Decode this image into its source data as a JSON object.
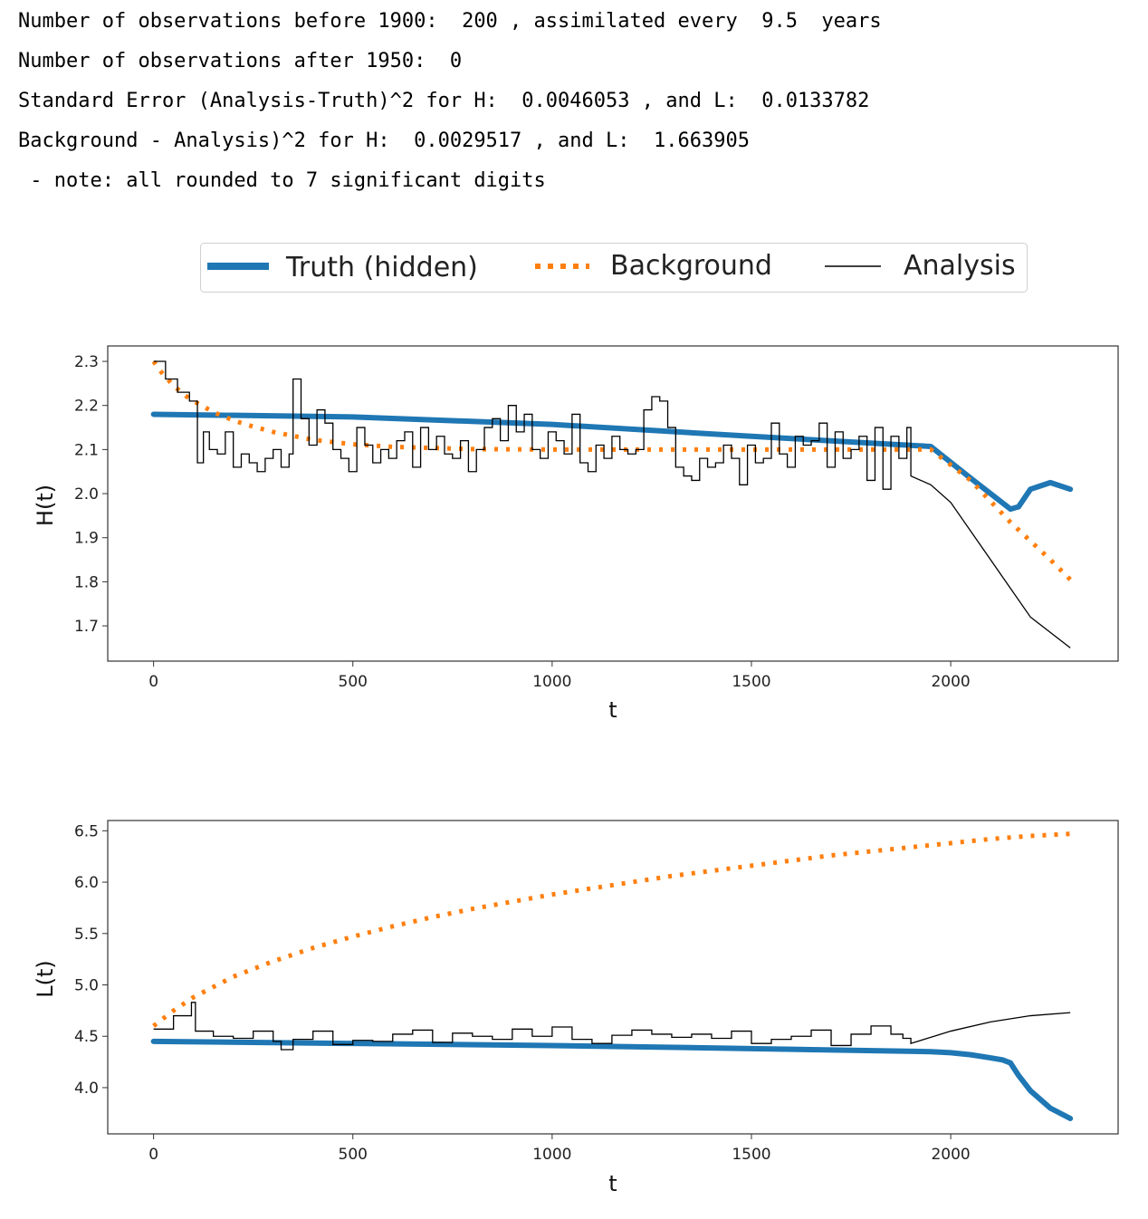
{
  "output_text": {
    "line1": "Number of observations before 1900:  200 , assimilated every  9.5  years",
    "line2": "Number of observations after 1950:  0",
    "line3": "Standard Error (Analysis-Truth)^2 for H:  0.0046053 , and L:  0.0133782",
    "line4": "Background - Analysis)^2 for H:  0.0029517 , and L:  1.663905",
    "line5": " - note: all rounded to 7 significant digits"
  },
  "legend": {
    "truth": "Truth (hidden)",
    "background": "Background",
    "analysis": "Analysis",
    "placement": "top-center"
  },
  "colors": {
    "truth": "#1f77b4",
    "background": "#ff7f0e",
    "analysis": "#000000"
  },
  "chart_data": [
    {
      "type": "line",
      "xlabel": "t",
      "ylabel": "H(t)",
      "xlim": [
        -115,
        2420
      ],
      "ylim": [
        1.62,
        2.335
      ],
      "xticks": [
        0,
        500,
        1000,
        1500,
        2000
      ],
      "yticks": [
        1.7,
        1.8,
        1.9,
        2.0,
        2.1,
        2.2,
        2.3
      ],
      "series": [
        {
          "name": "Truth (hidden)",
          "style": "solid-thick",
          "x": [
            0,
            500,
            1000,
            1500,
            1950,
            2050,
            2150,
            2170,
            2200,
            2250,
            2300
          ],
          "y": [
            2.18,
            2.174,
            2.157,
            2.13,
            2.107,
            2.035,
            1.965,
            1.97,
            2.01,
            2.025,
            2.01
          ]
        },
        {
          "name": "Background",
          "style": "dotted",
          "x": [
            0,
            20,
            50,
            80,
            110,
            150,
            200,
            250,
            300,
            400,
            500,
            600,
            800,
            1000,
            1500,
            1900,
            1950,
            2050,
            2150,
            2250,
            2300
          ],
          "y": [
            2.3,
            2.275,
            2.245,
            2.222,
            2.205,
            2.185,
            2.166,
            2.152,
            2.14,
            2.122,
            2.112,
            2.106,
            2.101,
            2.1,
            2.1,
            2.1,
            2.1,
            2.03,
            1.935,
            1.85,
            1.805
          ]
        },
        {
          "name": "Analysis",
          "style": "step-thin",
          "x": [
            0,
            30,
            60,
            90,
            110,
            125,
            140,
            160,
            180,
            200,
            220,
            240,
            260,
            280,
            300,
            320,
            340,
            350,
            370,
            390,
            410,
            430,
            450,
            470,
            490,
            510,
            530,
            550,
            570,
            590,
            610,
            630,
            650,
            670,
            690,
            710,
            730,
            750,
            770,
            790,
            810,
            830,
            850,
            870,
            890,
            910,
            930,
            950,
            970,
            990,
            1010,
            1030,
            1050,
            1070,
            1090,
            1110,
            1130,
            1150,
            1170,
            1190,
            1210,
            1230,
            1250,
            1270,
            1290,
            1310,
            1330,
            1350,
            1370,
            1390,
            1410,
            1430,
            1450,
            1470,
            1490,
            1510,
            1530,
            1550,
            1570,
            1590,
            1610,
            1630,
            1650,
            1670,
            1690,
            1710,
            1730,
            1750,
            1770,
            1790,
            1810,
            1830,
            1850,
            1870,
            1890,
            1900,
            1950,
            2000,
            2100,
            2200,
            2300
          ],
          "y": [
            2.3,
            2.26,
            2.23,
            2.21,
            2.07,
            2.14,
            2.1,
            2.09,
            2.14,
            2.06,
            2.09,
            2.07,
            2.05,
            2.08,
            2.1,
            2.06,
            2.09,
            2.26,
            2.17,
            2.11,
            2.19,
            2.16,
            2.1,
            2.08,
            2.05,
            2.15,
            2.11,
            2.07,
            2.1,
            2.08,
            2.12,
            2.14,
            2.06,
            2.15,
            2.1,
            2.13,
            2.09,
            2.08,
            2.12,
            2.05,
            2.1,
            2.15,
            2.17,
            2.12,
            2.2,
            2.14,
            2.18,
            2.1,
            2.08,
            2.14,
            2.12,
            2.09,
            2.18,
            2.07,
            2.05,
            2.11,
            2.08,
            2.13,
            2.1,
            2.09,
            2.1,
            2.19,
            2.22,
            2.21,
            2.15,
            2.06,
            2.04,
            2.03,
            2.08,
            2.06,
            2.07,
            2.11,
            2.08,
            2.02,
            2.11,
            2.07,
            2.08,
            2.16,
            2.09,
            2.06,
            2.13,
            2.11,
            2.12,
            2.16,
            2.06,
            2.14,
            2.08,
            2.1,
            2.13,
            2.03,
            2.15,
            2.01,
            2.13,
            2.08,
            2.15,
            2.04,
            2.02,
            1.98,
            1.85,
            1.72,
            1.65
          ]
        }
      ]
    },
    {
      "type": "line",
      "xlabel": "t",
      "ylabel": "L(t)",
      "xlim": [
        -115,
        2420
      ],
      "ylim": [
        3.55,
        6.6
      ],
      "xticks": [
        0,
        500,
        1000,
        1500,
        2000
      ],
      "yticks": [
        4.0,
        4.5,
        5.0,
        5.5,
        6.0,
        6.5
      ],
      "series": [
        {
          "name": "Truth (hidden)",
          "style": "solid-thick",
          "x": [
            0,
            500,
            1000,
            1500,
            1950,
            2000,
            2050,
            2100,
            2130,
            2150,
            2170,
            2200,
            2250,
            2300
          ],
          "y": [
            4.45,
            4.43,
            4.41,
            4.38,
            4.35,
            4.34,
            4.32,
            4.29,
            4.27,
            4.24,
            4.12,
            3.97,
            3.8,
            3.7
          ]
        },
        {
          "name": "Background",
          "style": "dotted",
          "x": [
            0,
            50,
            100,
            200,
            300,
            400,
            500,
            600,
            700,
            800,
            900,
            1000,
            1100,
            1200,
            1300,
            1400,
            1500,
            1600,
            1700,
            1800,
            1900,
            2000,
            2100,
            2200,
            2300
          ],
          "y": [
            4.6,
            4.75,
            4.88,
            5.08,
            5.23,
            5.36,
            5.47,
            5.57,
            5.66,
            5.74,
            5.81,
            5.88,
            5.94,
            6.0,
            6.06,
            6.11,
            6.16,
            6.21,
            6.26,
            6.3,
            6.34,
            6.38,
            6.42,
            6.45,
            6.47
          ]
        },
        {
          "name": "Analysis",
          "style": "step-thin",
          "x": [
            0,
            50,
            95,
            105,
            150,
            200,
            250,
            300,
            320,
            350,
            400,
            450,
            500,
            550,
            600,
            650,
            700,
            750,
            800,
            850,
            900,
            950,
            1000,
            1050,
            1100,
            1150,
            1200,
            1250,
            1300,
            1350,
            1400,
            1450,
            1500,
            1550,
            1600,
            1650,
            1700,
            1750,
            1800,
            1850,
            1880,
            1900,
            2000,
            2100,
            2200,
            2300
          ],
          "y": [
            4.57,
            4.7,
            4.83,
            4.55,
            4.5,
            4.48,
            4.55,
            4.45,
            4.37,
            4.47,
            4.55,
            4.42,
            4.46,
            4.45,
            4.52,
            4.56,
            4.44,
            4.53,
            4.5,
            4.47,
            4.57,
            4.5,
            4.59,
            4.47,
            4.43,
            4.51,
            4.56,
            4.52,
            4.49,
            4.52,
            4.48,
            4.55,
            4.43,
            4.47,
            4.5,
            4.56,
            4.41,
            4.52,
            4.6,
            4.52,
            4.48,
            4.43,
            4.55,
            4.64,
            4.7,
            4.73
          ]
        }
      ]
    }
  ]
}
